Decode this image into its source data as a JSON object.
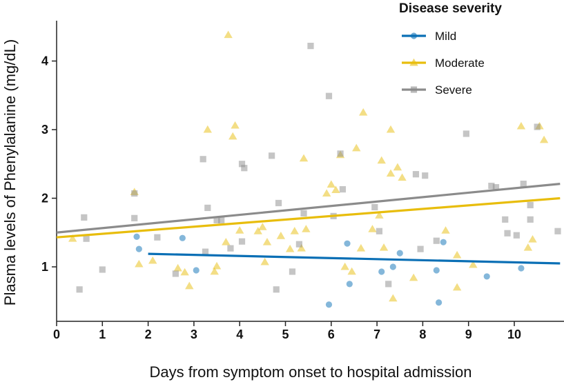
{
  "chart_data": {
    "type": "scatter",
    "title": "",
    "xlabel": "Days from symptom onset to hospital admission",
    "ylabel": "Plasma levels of Phenylalanine (mg/dL)",
    "xlim": [
      0,
      11
    ],
    "ylim": [
      0.3,
      4.55
    ],
    "xticks": [
      0,
      1,
      2,
      3,
      4,
      5,
      6,
      7,
      8,
      9,
      10
    ],
    "yticks": [
      1,
      2,
      3,
      4
    ],
    "grid": false,
    "legend": {
      "title": "Disease severity",
      "position": "top-right"
    },
    "series": [
      {
        "name": "Mild",
        "color": "#0a6fb5",
        "marker": "circle",
        "trend": {
          "x": [
            2,
            11
          ],
          "y": [
            1.19,
            1.05
          ]
        },
        "points": [
          [
            1.75,
            1.44
          ],
          [
            1.8,
            1.26
          ],
          [
            2.75,
            1.42
          ],
          [
            3.05,
            0.95
          ],
          [
            5.95,
            0.45
          ],
          [
            6.35,
            1.34
          ],
          [
            6.4,
            0.75
          ],
          [
            7.1,
            0.93
          ],
          [
            7.35,
            1.0
          ],
          [
            7.5,
            1.2
          ],
          [
            8.3,
            0.95
          ],
          [
            8.35,
            0.48
          ],
          [
            8.45,
            1.36
          ],
          [
            9.4,
            0.86
          ],
          [
            10.15,
            0.98
          ]
        ]
      },
      {
        "name": "Moderate",
        "color": "#e8bd0c",
        "marker": "triangle",
        "trend": {
          "x": [
            0,
            11
          ],
          "y": [
            1.43,
            2.0
          ]
        },
        "points": [
          [
            0.35,
            1.41
          ],
          [
            1.7,
            2.09
          ],
          [
            1.8,
            1.04
          ],
          [
            2.1,
            1.09
          ],
          [
            2.65,
            0.98
          ],
          [
            2.8,
            0.92
          ],
          [
            2.9,
            0.72
          ],
          [
            3.3,
            3.0
          ],
          [
            3.45,
            0.93
          ],
          [
            3.5,
            1.01
          ],
          [
            3.75,
            4.38
          ],
          [
            3.85,
            2.9
          ],
          [
            3.9,
            3.06
          ],
          [
            3.7,
            1.36
          ],
          [
            4.0,
            1.53
          ],
          [
            4.4,
            1.52
          ],
          [
            4.5,
            1.58
          ],
          [
            4.55,
            1.07
          ],
          [
            4.6,
            1.36
          ],
          [
            4.9,
            1.45
          ],
          [
            5.1,
            1.26
          ],
          [
            5.2,
            1.52
          ],
          [
            5.35,
            1.27
          ],
          [
            5.4,
            2.58
          ],
          [
            5.45,
            1.55
          ],
          [
            5.9,
            2.07
          ],
          [
            6.0,
            2.2
          ],
          [
            6.1,
            2.12
          ],
          [
            6.2,
            2.63
          ],
          [
            6.3,
            1.0
          ],
          [
            6.45,
            0.93
          ],
          [
            6.55,
            2.73
          ],
          [
            6.65,
            1.27
          ],
          [
            6.7,
            3.25
          ],
          [
            6.9,
            1.55
          ],
          [
            7.05,
            1.75
          ],
          [
            7.1,
            2.55
          ],
          [
            7.15,
            1.28
          ],
          [
            7.3,
            3.0
          ],
          [
            7.3,
            2.36
          ],
          [
            7.35,
            0.54
          ],
          [
            7.45,
            2.45
          ],
          [
            7.55,
            2.3
          ],
          [
            7.8,
            0.84
          ],
          [
            8.5,
            1.53
          ],
          [
            8.75,
            0.7
          ],
          [
            8.75,
            1.17
          ],
          [
            9.1,
            1.03
          ],
          [
            10.15,
            3.05
          ],
          [
            10.3,
            1.28
          ],
          [
            10.4,
            1.4
          ],
          [
            10.55,
            3.05
          ],
          [
            10.65,
            2.85
          ]
        ]
      },
      {
        "name": "Severe",
        "color": "#8b8b8b",
        "marker": "square",
        "trend": {
          "x": [
            0,
            11
          ],
          "y": [
            1.5,
            2.21
          ]
        },
        "points": [
          [
            0.5,
            0.67
          ],
          [
            0.6,
            1.72
          ],
          [
            0.65,
            1.41
          ],
          [
            1.0,
            0.96
          ],
          [
            1.7,
            1.71
          ],
          [
            1.7,
            2.07
          ],
          [
            2.2,
            1.43
          ],
          [
            2.6,
            0.9
          ],
          [
            3.2,
            2.57
          ],
          [
            3.25,
            1.22
          ],
          [
            3.3,
            1.86
          ],
          [
            3.5,
            1.68
          ],
          [
            3.6,
            1.68
          ],
          [
            3.8,
            1.27
          ],
          [
            4.05,
            1.37
          ],
          [
            4.1,
            2.44
          ],
          [
            4.05,
            2.5
          ],
          [
            4.7,
            2.62
          ],
          [
            4.8,
            0.67
          ],
          [
            4.85,
            1.93
          ],
          [
            5.15,
            0.93
          ],
          [
            5.3,
            1.33
          ],
          [
            5.4,
            1.78
          ],
          [
            5.55,
            4.22
          ],
          [
            5.95,
            3.49
          ],
          [
            6.05,
            1.74
          ],
          [
            6.2,
            2.65
          ],
          [
            6.25,
            2.13
          ],
          [
            6.95,
            1.87
          ],
          [
            7.05,
            1.52
          ],
          [
            7.25,
            0.75
          ],
          [
            7.85,
            2.35
          ],
          [
            7.95,
            1.26
          ],
          [
            8.05,
            2.33
          ],
          [
            8.3,
            1.38
          ],
          [
            8.95,
            2.94
          ],
          [
            9.5,
            2.18
          ],
          [
            9.6,
            2.16
          ],
          [
            9.8,
            1.69
          ],
          [
            9.85,
            1.49
          ],
          [
            10.05,
            1.46
          ],
          [
            10.2,
            2.21
          ],
          [
            10.35,
            1.69
          ],
          [
            10.35,
            1.9
          ],
          [
            10.5,
            3.04
          ],
          [
            10.95,
            1.52
          ]
        ]
      }
    ]
  }
}
